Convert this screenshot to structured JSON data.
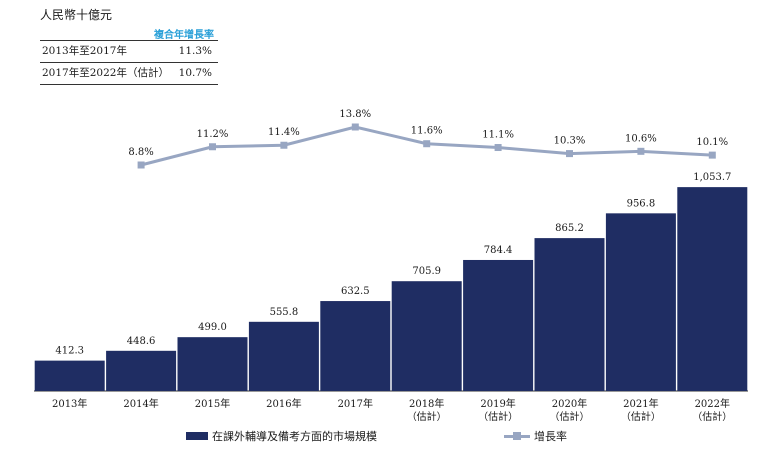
{
  "unit_label": "人民幣十億元",
  "cagr_table": {
    "header": "複合年增長率",
    "rows": [
      {
        "period": "2013年至2017年",
        "value": "11.3%"
      },
      {
        "period": "2017年至2022年（估計）",
        "value": "10.7%"
      }
    ]
  },
  "legend": {
    "bar_label": "在課外輔導及備考方面的市場規模",
    "line_label": "增長率"
  },
  "colors": {
    "bar": "#1f2d63",
    "line": "#98a6c2",
    "cagr_header": "#2aa0d8"
  },
  "chart_data": {
    "type": "bar",
    "categories": [
      "2013年",
      "2014年",
      "2015年",
      "2016年",
      "2017年",
      "2018年\n（估計）",
      "2019年\n（估計）",
      "2020年\n（估計）",
      "2021年\n（估計）",
      "2022年\n（估計）"
    ],
    "series": [
      {
        "name": "在課外輔導及備考方面的市場規模",
        "type": "bar",
        "values": [
          412.3,
          448.6,
          499.0,
          555.8,
          632.5,
          705.9,
          784.4,
          865.2,
          956.8,
          1053.7
        ],
        "labels": [
          "412.3",
          "448.6",
          "499.0",
          "555.8",
          "632.5",
          "705.9",
          "784.4",
          "865.2",
          "956.8",
          "1,053.7"
        ]
      },
      {
        "name": "增長率",
        "type": "line",
        "values": [
          null,
          8.8,
          11.2,
          11.4,
          13.8,
          11.6,
          11.1,
          10.3,
          10.6,
          10.1
        ],
        "labels": [
          null,
          "8.8%",
          "11.2%",
          "11.4%",
          "13.8%",
          "11.6%",
          "11.1%",
          "10.3%",
          "10.6%",
          "10.1%"
        ]
      }
    ],
    "grid": false,
    "legend_position": "bottom"
  }
}
